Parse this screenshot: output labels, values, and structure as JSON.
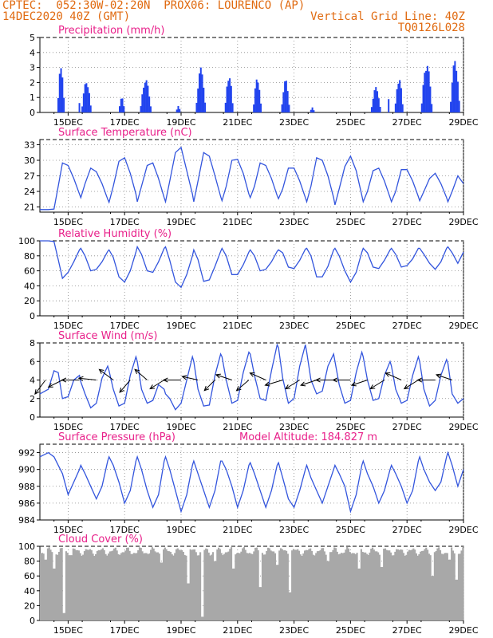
{
  "header": {
    "line1": "CPTEC:  052:30W-02:20N  PROX06: LOURENCO (AP)",
    "line2": "14DEC2020 40Z (GMT)",
    "grid_note": "Vertical Grid Line: 40Z",
    "run_id": "TQ0126L028"
  },
  "colors": {
    "header_text": "#e06a10",
    "panel_title": "#e8208a",
    "series_line": "#3355dd",
    "precip_bar": "#2244ee",
    "cloud_fill": "#a8a8a8",
    "wind_arrow": "#000000"
  },
  "x_axis": {
    "tick_labels": [
      "15DEC",
      "17DEC",
      "19DEC",
      "21DEC",
      "23DEC",
      "25DEC",
      "27DEC",
      "29DEC"
    ],
    "tick_days": [
      15,
      17,
      19,
      21,
      23,
      25,
      27,
      29
    ],
    "range_days": [
      14.0,
      29.0
    ]
  },
  "model_altitude_label": "Model Altitude: 184.827 m",
  "chart_data": [
    {
      "type": "bar",
      "title": "Precipitation (mm/h)",
      "ylim": [
        0,
        5
      ],
      "yticks": [
        "0",
        "1",
        "2",
        "3",
        "4",
        "5"
      ],
      "grid": true,
      "events": [
        {
          "day": 14.75,
          "width": 0.25,
          "peak": 3.2
        },
        {
          "day": 15.4,
          "width": 0.05,
          "peak": 0.7
        },
        {
          "day": 15.65,
          "width": 0.35,
          "peak": 2.1
        },
        {
          "day": 16.9,
          "width": 0.2,
          "peak": 1.1
        },
        {
          "day": 17.75,
          "width": 0.4,
          "peak": 2.2
        },
        {
          "day": 18.9,
          "width": 0.15,
          "peak": 0.45
        },
        {
          "day": 19.7,
          "width": 0.35,
          "peak": 3.0
        },
        {
          "day": 20.7,
          "width": 0.3,
          "peak": 2.5
        },
        {
          "day": 21.7,
          "width": 0.3,
          "peak": 2.3
        },
        {
          "day": 22.7,
          "width": 0.3,
          "peak": 2.2
        },
        {
          "day": 23.65,
          "width": 0.15,
          "peak": 0.35
        },
        {
          "day": 25.9,
          "width": 0.35,
          "peak": 1.7
        },
        {
          "day": 26.35,
          "width": 0.05,
          "peak": 0.9
        },
        {
          "day": 26.72,
          "width": 0.3,
          "peak": 2.3
        },
        {
          "day": 27.7,
          "width": 0.4,
          "peak": 3.3
        },
        {
          "day": 28.7,
          "width": 0.35,
          "peak": 3.5
        }
      ]
    },
    {
      "type": "line",
      "title": "Surface Temperature (nC)",
      "ylim": [
        20,
        34
      ],
      "yticks": [
        "21",
        "24",
        "27",
        "30",
        "33"
      ],
      "ytick_values": [
        21,
        24,
        27,
        30,
        33
      ],
      "grid": true,
      "x": [
        14.0,
        14.3,
        14.5,
        14.65,
        14.8,
        15.0,
        15.2,
        15.4,
        15.45,
        15.6,
        15.8,
        16.0,
        16.2,
        16.4,
        16.45,
        16.6,
        16.8,
        17.0,
        17.2,
        17.4,
        17.45,
        17.6,
        17.8,
        18.0,
        18.2,
        18.4,
        18.45,
        18.6,
        18.8,
        19.0,
        19.2,
        19.4,
        19.45,
        19.6,
        19.8,
        20.0,
        20.2,
        20.4,
        20.45,
        20.6,
        20.8,
        21.0,
        21.2,
        21.4,
        21.45,
        21.6,
        21.8,
        22.0,
        22.2,
        22.4,
        22.45,
        22.6,
        22.8,
        23.0,
        23.2,
        23.4,
        23.45,
        23.6,
        23.8,
        24.0,
        24.2,
        24.4,
        24.45,
        24.6,
        24.8,
        25.0,
        25.2,
        25.4,
        25.45,
        25.6,
        25.8,
        26.0,
        26.2,
        26.4,
        26.45,
        26.6,
        26.8,
        27.0,
        27.2,
        27.4,
        27.45,
        27.6,
        27.8,
        28.0,
        28.2,
        28.4,
        28.45,
        28.6,
        28.8,
        29.0
      ],
      "y": [
        20.5,
        20.5,
        20.6,
        25.0,
        29.5,
        29.0,
        26.5,
        23.5,
        22.8,
        25.5,
        28.5,
        27.8,
        25.5,
        22.5,
        21.9,
        25.0,
        29.8,
        30.5,
        27.5,
        23.5,
        22.0,
        25.0,
        29.0,
        29.5,
        26.5,
        22.8,
        22.0,
        26.0,
        31.5,
        32.5,
        28.0,
        23.5,
        22.0,
        26.0,
        31.5,
        30.8,
        27.0,
        23.0,
        22.2,
        25.0,
        30.0,
        30.2,
        27.5,
        23.5,
        22.8,
        25.0,
        29.5,
        29.0,
        26.5,
        23.2,
        22.6,
        24.5,
        28.5,
        28.5,
        26.0,
        22.8,
        22.0,
        25.0,
        30.5,
        30.0,
        27.0,
        22.8,
        21.4,
        24.5,
        28.8,
        30.8,
        28.0,
        23.2,
        22.0,
        24.0,
        28.0,
        28.5,
        26.0,
        22.8,
        22.0,
        24.0,
        28.2,
        28.2,
        26.0,
        23.0,
        22.2,
        24.0,
        26.5,
        27.5,
        25.5,
        22.8,
        22.0,
        24.0,
        27.0,
        25.5
      ]
    },
    {
      "type": "line",
      "title": "Relative Humidity (%)",
      "ylim": [
        0,
        100
      ],
      "yticks": [
        "0",
        "20",
        "40",
        "60",
        "80",
        "100"
      ],
      "ytick_values": [
        0,
        20,
        40,
        60,
        80,
        100
      ],
      "grid": true,
      "x": [
        14.0,
        14.3,
        14.5,
        14.65,
        14.8,
        15.0,
        15.2,
        15.4,
        15.45,
        15.6,
        15.8,
        16.0,
        16.2,
        16.4,
        16.45,
        16.6,
        16.8,
        17.0,
        17.2,
        17.4,
        17.45,
        17.6,
        17.8,
        18.0,
        18.2,
        18.4,
        18.45,
        18.6,
        18.8,
        19.0,
        19.2,
        19.4,
        19.45,
        19.6,
        19.8,
        20.0,
        20.2,
        20.4,
        20.45,
        20.6,
        20.8,
        21.0,
        21.2,
        21.4,
        21.45,
        21.6,
        21.8,
        22.0,
        22.2,
        22.4,
        22.45,
        22.6,
        22.8,
        23.0,
        23.2,
        23.4,
        23.45,
        23.6,
        23.8,
        24.0,
        24.2,
        24.4,
        24.45,
        24.6,
        24.8,
        25.0,
        25.2,
        25.4,
        25.45,
        25.6,
        25.8,
        26.0,
        26.2,
        26.4,
        26.45,
        26.6,
        26.8,
        27.0,
        27.2,
        27.4,
        27.45,
        27.6,
        27.8,
        28.0,
        28.2,
        28.4,
        28.45,
        28.6,
        28.8,
        29.0
      ],
      "y": [
        100,
        100,
        99,
        75,
        50,
        58,
        72,
        88,
        90,
        80,
        60,
        62,
        72,
        86,
        88,
        78,
        52,
        45,
        60,
        85,
        92,
        82,
        60,
        58,
        72,
        90,
        92,
        74,
        45,
        38,
        55,
        80,
        88,
        75,
        46,
        48,
        66,
        86,
        90,
        80,
        55,
        55,
        68,
        85,
        88,
        80,
        60,
        62,
        72,
        86,
        88,
        84,
        65,
        63,
        74,
        89,
        90,
        80,
        52,
        52,
        66,
        88,
        90,
        80,
        60,
        45,
        58,
        85,
        90,
        84,
        65,
        63,
        74,
        88,
        90,
        82,
        65,
        67,
        76,
        90,
        90,
        82,
        70,
        62,
        72,
        90,
        92,
        84,
        70,
        85
      ]
    },
    {
      "type": "line",
      "title": "Surface Wind (m/s)",
      "ylim": [
        0,
        8
      ],
      "yticks": [
        "0",
        "2",
        "4",
        "6",
        "8"
      ],
      "ytick_values": [
        0,
        2,
        4,
        6,
        8
      ],
      "grid": true,
      "x": [
        14.0,
        14.3,
        14.5,
        14.65,
        14.8,
        15.0,
        15.2,
        15.4,
        15.45,
        15.6,
        15.8,
        16.0,
        16.2,
        16.4,
        16.45,
        16.6,
        16.8,
        17.0,
        17.2,
        17.4,
        17.45,
        17.6,
        17.8,
        18.0,
        18.2,
        18.4,
        18.45,
        18.6,
        18.8,
        19.0,
        19.2,
        19.4,
        19.45,
        19.6,
        19.8,
        20.0,
        20.2,
        20.4,
        20.45,
        20.6,
        20.8,
        21.0,
        21.2,
        21.4,
        21.45,
        21.6,
        21.8,
        22.0,
        22.2,
        22.4,
        22.45,
        22.6,
        22.8,
        23.0,
        23.2,
        23.4,
        23.45,
        23.6,
        23.8,
        24.0,
        24.2,
        24.4,
        24.45,
        24.6,
        24.8,
        25.0,
        25.2,
        25.4,
        25.45,
        25.6,
        25.8,
        26.0,
        26.2,
        26.4,
        26.45,
        26.6,
        26.8,
        27.0,
        27.2,
        27.4,
        27.45,
        27.6,
        27.8,
        28.0,
        28.2,
        28.4,
        28.45,
        28.6,
        28.8,
        29.0
      ],
      "y": [
        2.5,
        3.0,
        5.0,
        4.8,
        2.0,
        2.2,
        4.0,
        4.5,
        3.8,
        2.5,
        1.0,
        1.5,
        4.2,
        5.5,
        5.0,
        3.0,
        1.2,
        1.5,
        4.5,
        6.5,
        6.0,
        3.0,
        1.5,
        1.8,
        3.5,
        3.0,
        2.5,
        2.0,
        0.8,
        1.5,
        4.0,
        6.5,
        6.0,
        3.0,
        1.2,
        1.3,
        4.5,
        6.8,
        6.5,
        4.0,
        1.5,
        1.8,
        4.8,
        7.0,
        6.8,
        4.5,
        2.0,
        1.8,
        5.0,
        7.8,
        7.5,
        4.2,
        1.5,
        2.0,
        5.5,
        7.8,
        7.0,
        4.0,
        2.5,
        2.8,
        5.5,
        6.8,
        6.0,
        3.5,
        1.5,
        1.8,
        4.8,
        7.0,
        6.5,
        4.0,
        1.8,
        2.0,
        4.5,
        6.0,
        5.5,
        3.0,
        1.5,
        1.8,
        4.5,
        6.5,
        6.0,
        3.0,
        1.2,
        1.8,
        4.5,
        6.2,
        5.8,
        2.5,
        1.5,
        2.0
      ],
      "arrows": [
        {
          "day": 14.2,
          "dx": -0.6,
          "dy": -0.8
        },
        {
          "day": 14.8,
          "dx": -0.8,
          "dy": -0.4
        },
        {
          "day": 15.4,
          "dx": -1.0,
          "dy": 0.0
        },
        {
          "day": 16.0,
          "dx": -1.0,
          "dy": 0.1
        },
        {
          "day": 16.6,
          "dx": -0.8,
          "dy": 0.6
        },
        {
          "day": 17.2,
          "dx": -0.6,
          "dy": -0.7
        },
        {
          "day": 17.8,
          "dx": -0.7,
          "dy": 0.6
        },
        {
          "day": 18.4,
          "dx": -0.8,
          "dy": -0.5
        },
        {
          "day": 19.0,
          "dx": -1.0,
          "dy": 0.0
        },
        {
          "day": 19.6,
          "dx": -0.9,
          "dy": 0.2
        },
        {
          "day": 20.2,
          "dx": -0.6,
          "dy": -0.6
        },
        {
          "day": 20.8,
          "dx": -0.9,
          "dy": 0.3
        },
        {
          "day": 21.4,
          "dx": -0.7,
          "dy": -0.6
        },
        {
          "day": 22.0,
          "dx": -0.9,
          "dy": 0.4
        },
        {
          "day": 22.6,
          "dx": -1.0,
          "dy": -0.3
        },
        {
          "day": 23.2,
          "dx": -0.8,
          "dy": -0.5
        },
        {
          "day": 23.8,
          "dx": -0.9,
          "dy": -0.3
        },
        {
          "day": 24.4,
          "dx": -1.0,
          "dy": 0.0
        },
        {
          "day": 25.0,
          "dx": -1.0,
          "dy": 0.0
        },
        {
          "day": 25.6,
          "dx": -0.9,
          "dy": -0.3
        },
        {
          "day": 26.2,
          "dx": -0.8,
          "dy": -0.5
        },
        {
          "day": 26.8,
          "dx": -0.9,
          "dy": 0.4
        },
        {
          "day": 27.4,
          "dx": -0.8,
          "dy": -0.5
        },
        {
          "day": 28.0,
          "dx": -1.0,
          "dy": 0.0
        },
        {
          "day": 28.6,
          "dx": -0.9,
          "dy": 0.3
        }
      ]
    },
    {
      "type": "line",
      "title": "Surface Pressure (hPa)",
      "ylim": [
        984,
        993
      ],
      "yticks": [
        "984",
        "986",
        "988",
        "990",
        "992"
      ],
      "ytick_values": [
        984,
        986,
        988,
        990,
        992
      ],
      "grid": true,
      "x": [
        14.0,
        14.3,
        14.5,
        14.65,
        14.8,
        15.0,
        15.2,
        15.4,
        15.45,
        15.6,
        15.8,
        16.0,
        16.2,
        16.4,
        16.45,
        16.6,
        16.8,
        17.0,
        17.2,
        17.4,
        17.45,
        17.6,
        17.8,
        18.0,
        18.2,
        18.4,
        18.45,
        18.6,
        18.8,
        19.0,
        19.2,
        19.4,
        19.45,
        19.6,
        19.8,
        20.0,
        20.2,
        20.4,
        20.45,
        20.6,
        20.8,
        21.0,
        21.2,
        21.4,
        21.45,
        21.6,
        21.8,
        22.0,
        22.2,
        22.4,
        22.45,
        22.6,
        22.8,
        23.0,
        23.2,
        23.4,
        23.45,
        23.6,
        23.8,
        24.0,
        24.2,
        24.4,
        24.45,
        24.6,
        24.8,
        25.0,
        25.2,
        25.4,
        25.45,
        25.6,
        25.8,
        26.0,
        26.2,
        26.4,
        26.45,
        26.6,
        26.8,
        27.0,
        27.2,
        27.4,
        27.45,
        27.6,
        27.8,
        28.0,
        28.2,
        28.4,
        28.45,
        28.6,
        28.8,
        29.0
      ],
      "y": [
        991.5,
        992,
        991.5,
        990.5,
        989.5,
        987,
        988.5,
        990,
        990.5,
        989.5,
        988,
        986.5,
        988,
        991,
        991.5,
        990.5,
        988.5,
        986,
        987.5,
        991,
        991.5,
        990,
        987.5,
        985.5,
        987,
        991,
        991.5,
        990,
        987.5,
        985,
        987,
        990.5,
        991,
        989.5,
        987.5,
        985.5,
        987.5,
        991,
        991,
        990,
        988,
        985.5,
        987.5,
        990.5,
        990.8,
        989.5,
        987.5,
        985.5,
        987.5,
        990.5,
        990.8,
        989,
        986.5,
        985.5,
        987.5,
        990,
        990.5,
        989,
        987.5,
        986,
        988,
        990,
        990.5,
        989.5,
        988,
        985,
        987,
        990.5,
        991,
        989.5,
        988,
        986,
        987.5,
        990,
        990.5,
        989.5,
        988,
        986,
        987.5,
        991,
        991.5,
        990,
        988.5,
        987.5,
        988.5,
        991.5,
        992,
        990.5,
        988,
        990
      ]
    },
    {
      "type": "bar",
      "title": "Cloud Cover (%)",
      "ylim": [
        0,
        100
      ],
      "yticks": [
        "0",
        "20",
        "40",
        "60",
        "80",
        "100"
      ],
      "ytick_values": [
        0,
        20,
        40,
        60,
        80,
        100
      ],
      "grid": true,
      "base_level": 93,
      "dips": [
        {
          "day": 14.2,
          "value": 82
        },
        {
          "day": 14.5,
          "value": 70
        },
        {
          "day": 14.85,
          "value": 10
        },
        {
          "day": 15.1,
          "value": 88
        },
        {
          "day": 18.3,
          "value": 78
        },
        {
          "day": 19.25,
          "value": 50
        },
        {
          "day": 19.75,
          "value": 5
        },
        {
          "day": 20.2,
          "value": 80
        },
        {
          "day": 20.85,
          "value": 70
        },
        {
          "day": 21.8,
          "value": 45
        },
        {
          "day": 22.4,
          "value": 75
        },
        {
          "day": 22.85,
          "value": 38
        },
        {
          "day": 24.2,
          "value": 80
        },
        {
          "day": 25.3,
          "value": 70
        },
        {
          "day": 26.1,
          "value": 72
        },
        {
          "day": 27.9,
          "value": 60
        },
        {
          "day": 28.5,
          "value": 82
        },
        {
          "day": 28.75,
          "value": 55
        }
      ]
    }
  ]
}
